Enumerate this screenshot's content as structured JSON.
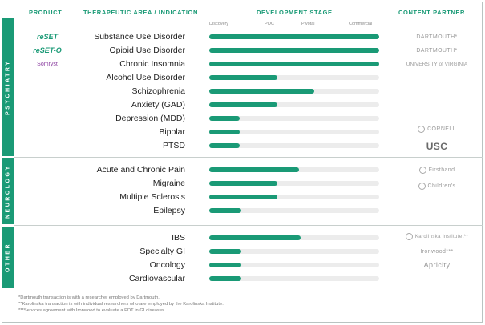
{
  "headers": {
    "product": "PRODUCT",
    "area": "THERAPEUTIC AREA / INDICATION",
    "stage": "DEVELOPMENT STAGE",
    "partner": "CONTENT PARTNER"
  },
  "stages": [
    "Discovery",
    "POC",
    "Pivotal",
    "Commercial"
  ],
  "categories": {
    "psychiatry": "PSYCHIATRY",
    "neurology": "NEUROLOGY",
    "other": "OTHER"
  },
  "colors": {
    "accent": "#1a9a76",
    "track": "#ececec",
    "purple": "#8b3fa0"
  },
  "products": {
    "reset": "reSET",
    "reseto": "reSET-O",
    "somryst": "Somryst"
  },
  "partners": {
    "dartmouth1": "DARTMOUTH*",
    "dartmouth2": "DARTMOUTH*",
    "virginia": "UNIVERSITY of VIRGINIA",
    "cornell": "CORNELL",
    "usc": "USC",
    "firsthand": "Firsthand",
    "childrens": "Children's",
    "karolinska": "Karolinska Institutet**",
    "ironwood": "Ironwood***",
    "apricity": "Apricity"
  },
  "chart_data": {
    "type": "bar",
    "orientation": "horizontal",
    "stage_axis": [
      "Discovery",
      "POC",
      "Pivotal",
      "Commercial"
    ],
    "xlim": [
      0,
      1
    ],
    "rows": [
      {
        "category": "PSYCHIATRY",
        "label": "Substance Use Disorder",
        "value": 1.0
      },
      {
        "category": "PSYCHIATRY",
        "label": "Opioid Use Disorder",
        "value": 1.0
      },
      {
        "category": "PSYCHIATRY",
        "label": "Chronic Insomnia",
        "value": 1.0
      },
      {
        "category": "PSYCHIATRY",
        "label": "Alcohol Use Disorder",
        "value": 0.4
      },
      {
        "category": "PSYCHIATRY",
        "label": "Schizophrenia",
        "value": 0.62
      },
      {
        "category": "PSYCHIATRY",
        "label": "Anxiety (GAD)",
        "value": 0.4
      },
      {
        "category": "PSYCHIATRY",
        "label": "Depression (MDD)",
        "value": 0.18
      },
      {
        "category": "PSYCHIATRY",
        "label": "Bipolar",
        "value": 0.18
      },
      {
        "category": "PSYCHIATRY",
        "label": "PTSD",
        "value": 0.18
      },
      {
        "category": "NEUROLOGY",
        "label": "Acute and Chronic Pain",
        "value": 0.53
      },
      {
        "category": "NEUROLOGY",
        "label": "Migraine",
        "value": 0.4
      },
      {
        "category": "NEUROLOGY",
        "label": "Multiple Sclerosis",
        "value": 0.4
      },
      {
        "category": "NEUROLOGY",
        "label": "Epilepsy",
        "value": 0.19
      },
      {
        "category": "OTHER",
        "label": "IBS",
        "value": 0.54
      },
      {
        "category": "OTHER",
        "label": "Specialty GI",
        "value": 0.19
      },
      {
        "category": "OTHER",
        "label": "Oncology",
        "value": 0.19
      },
      {
        "category": "OTHER",
        "label": "Cardiovascular",
        "value": 0.19
      }
    ]
  },
  "footnotes": [
    "*Dartmouth transaction is with a researcher employed by Dartmouth.",
    "**Karolinska transaction is with individual researchers who are employed by the Karolinska Institute.",
    "***Services agreement with Ironwood to evaluate a PDT in GI diseases."
  ]
}
